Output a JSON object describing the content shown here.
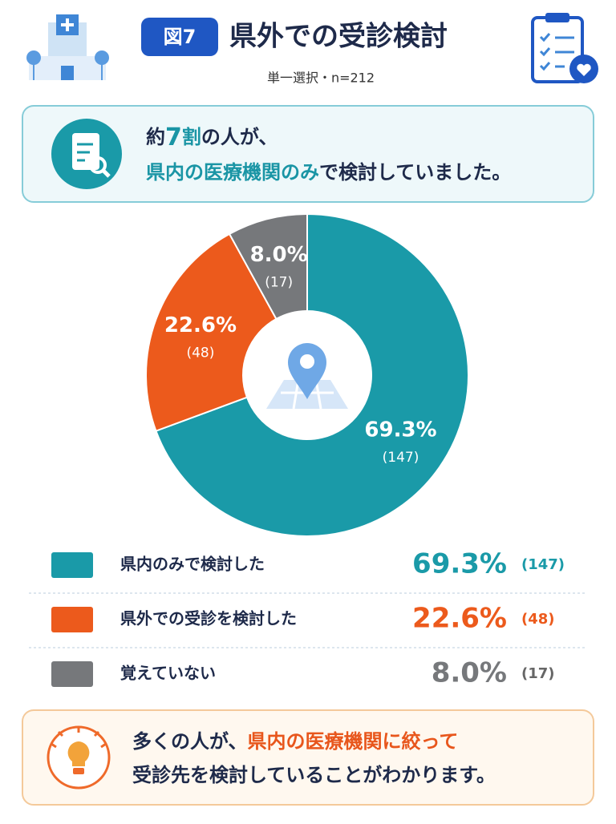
{
  "chart_data": {
    "type": "pie",
    "badge": "図7",
    "title": "県外での受診検討",
    "subtitle": "単一選択・n=212",
    "summary": [
      [
        "約",
        "7",
        "割",
        "の人が、"
      ],
      [
        "県内の医療機関のみ",
        "で検討していました。"
      ]
    ],
    "categories": [
      "県内のみで検討した",
      "県外での受診を検討した",
      "覚えていない"
    ],
    "values": [
      69.3,
      22.6,
      8.0
    ],
    "value_labels": [
      "69.3%",
      "22.6%",
      "8.0%"
    ],
    "count_labels": [
      "(147)",
      "(48)",
      "(17)"
    ],
    "colors": [
      "#1a9aa8",
      "#ec5a1c",
      "#76787b"
    ],
    "donut": true,
    "conclusion": [
      [
        "多くの人が、",
        "県内の医療機関に絞って"
      ],
      [
        "受診先を検討していることがわかります。"
      ]
    ]
  }
}
